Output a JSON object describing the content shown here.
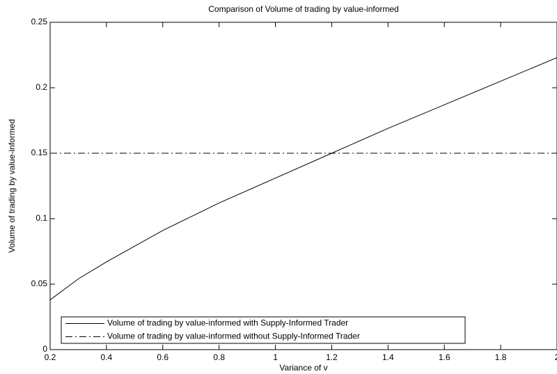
{
  "chart_data": {
    "type": "line",
    "title": "Comparison of Volume of trading by value-informed",
    "xlabel": "Variance of v",
    "ylabel": "Volume of trading by value-informed",
    "x": [
      0.2,
      0.3,
      0.4,
      0.6,
      0.8,
      1.0,
      1.2,
      1.4,
      1.6,
      1.8,
      2.0
    ],
    "series": [
      {
        "name": "Volume of trading by value-informed with Supply-Informed Trader",
        "color": "#000000",
        "dash": "solid",
        "values": [
          0.038,
          0.054,
          0.067,
          0.091,
          0.112,
          0.131,
          0.15,
          0.169,
          0.187,
          0.205,
          0.223
        ]
      },
      {
        "name": "Volume of trading by value-informed without Supply-Informed Trader",
        "color": "#000000",
        "dash": "dashdot",
        "values": [
          0.15,
          0.15,
          0.15,
          0.15,
          0.15,
          0.15,
          0.15,
          0.15,
          0.15,
          0.15,
          0.15
        ]
      }
    ],
    "xlim": [
      0.2,
      2
    ],
    "ylim": [
      0,
      0.25
    ],
    "xticks": [
      0.2,
      0.4,
      0.6,
      0.8,
      1,
      1.2,
      1.4,
      1.6,
      1.8,
      2
    ],
    "yticks": [
      0,
      0.05,
      0.1,
      0.15,
      0.2,
      0.25
    ],
    "grid": false,
    "legend": "lower left"
  }
}
